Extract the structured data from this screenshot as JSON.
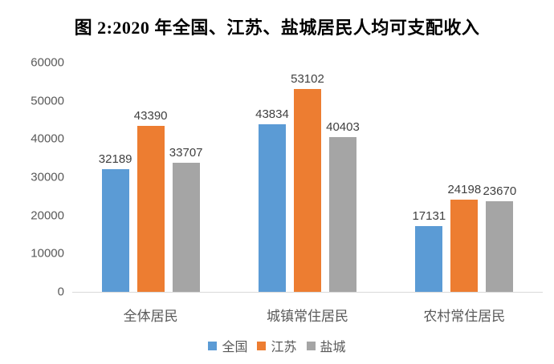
{
  "chart_data": {
    "type": "bar",
    "title": "图 2:2020 年全国、江苏、盐城居民人均可支配收入",
    "categories": [
      "全体居民",
      "城镇常住居民",
      "农村常住居民"
    ],
    "series": [
      {
        "name": "全国",
        "color": "#5B9BD5",
        "values": [
          32189,
          43834,
          17131
        ]
      },
      {
        "name": "江苏",
        "color": "#ED7D31",
        "values": [
          43390,
          53102,
          24198
        ]
      },
      {
        "name": "盐城",
        "color": "#A5A5A5",
        "values": [
          33707,
          40403,
          23670
        ]
      }
    ],
    "xlabel": "",
    "ylabel": "",
    "ylim": [
      0,
      60000
    ],
    "yticks": [
      0,
      10000,
      20000,
      30000,
      40000,
      50000,
      60000
    ],
    "grid": false,
    "data_labels": true,
    "legend_position": "bottom"
  },
  "colors": {
    "axis_line": "#D9D9D9",
    "tick_label": "#595959",
    "data_label": "#404040",
    "category_label": "#595959",
    "legend_label": "#595959",
    "title": "#000000",
    "background": "#FFFFFF"
  }
}
